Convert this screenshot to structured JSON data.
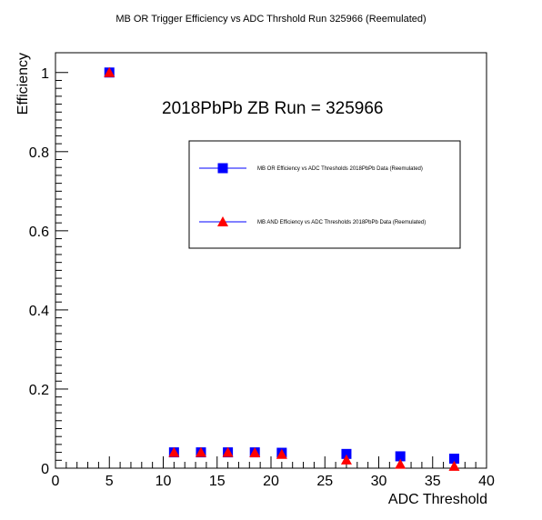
{
  "chart_data": {
    "type": "scatter",
    "title": "MB OR Trigger Efficiency vs ADC Thrshold Run 325966 (Reemulated)",
    "xlabel": "ADC Threshold",
    "ylabel": "Efficiency",
    "annotation": "2018PbPb ZB Run = 325966",
    "xlim": [
      0,
      40
    ],
    "ylim": [
      0,
      1.05
    ],
    "x_ticks": [
      0,
      5,
      10,
      15,
      20,
      25,
      30,
      35,
      40
    ],
    "y_ticks": [
      0,
      0.2,
      0.4,
      0.6,
      0.8,
      1
    ],
    "grid": false,
    "legend_position": "top-right",
    "series": [
      {
        "name": "MB OR Efficiency vs ADC Thresholds 2018PbPb Data (Reemulated)",
        "marker": "square",
        "color": "#0000ff",
        "x": [
          5,
          11,
          13.5,
          16,
          18.5,
          21,
          27,
          32,
          37
        ],
        "y": [
          1.0,
          0.04,
          0.04,
          0.04,
          0.04,
          0.039,
          0.036,
          0.03,
          0.024
        ]
      },
      {
        "name": "MB AND Efficiency vs ADC Thresholds 2018PbPb Data (Reemulated)",
        "marker": "triangle",
        "color": "#ff0000",
        "x": [
          5,
          11,
          13.5,
          16,
          18.5,
          21,
          27,
          32,
          37
        ],
        "y": [
          1.0,
          0.04,
          0.04,
          0.04,
          0.039,
          0.035,
          0.021,
          0.01,
          0.005
        ]
      }
    ]
  }
}
